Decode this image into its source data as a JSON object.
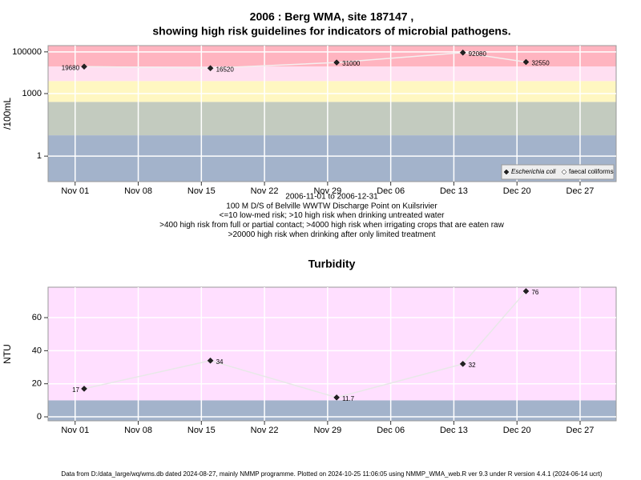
{
  "chart_data": [
    {
      "type": "line",
      "title": "2006 : Berg WMA, site 187147 ,",
      "subtitle": "showing high risk guidelines for indicators of microbial pathogens.",
      "y_label": "/100mL",
      "log_y": true,
      "x": [
        "2006-11-02",
        "2006-11-16",
        "2006-11-30",
        "2006-12-14",
        "2006-12-21"
      ],
      "series": [
        {
          "name": "Escherichia coli",
          "color": "#222222",
          "line_color": "#f4f0f0",
          "values": [
            19680,
            16520,
            31000,
            92080,
            32550
          ]
        },
        {
          "name": "faecal coliforms",
          "color": "#ffffff",
          "line_color": "#f4f0f0",
          "values": [
            null,
            null,
            null,
            null,
            null
          ]
        }
      ],
      "xlim": [
        "2006-10-29",
        "2006-12-31"
      ],
      "xticks": [
        {
          "value": "2006-11-01",
          "label": "Nov 01"
        },
        {
          "value": "2006-11-08",
          "label": "Nov 08"
        },
        {
          "value": "2006-11-15",
          "label": "Nov 15"
        },
        {
          "value": "2006-11-22",
          "label": "Nov 22"
        },
        {
          "value": "2006-11-29",
          "label": "Nov 29"
        },
        {
          "value": "2006-12-06",
          "label": "Dec 06"
        },
        {
          "value": "2006-12-13",
          "label": "Dec 13"
        },
        {
          "value": "2006-12-20",
          "label": "Dec 20"
        },
        {
          "value": "2006-12-27",
          "label": "Dec 27"
        }
      ],
      "ylim": [
        0.06,
        200000
      ],
      "yticks": [
        1,
        1000,
        100000
      ],
      "thresholds": [
        10,
        400,
        4000,
        20000
      ],
      "band_colors": [
        "#a3b3cb",
        "#c3cbbf",
        "#fff7c1",
        "#ffdff1",
        "#ffb4c0"
      ],
      "grid": true,
      "legend": "bottom-right",
      "notes": [
        "2006-11-01 to 2006-12-31",
        "100 M D/S of Belville WWTW Discharge Point on Kuilsrivier",
        "<=10 low-med risk; >10 high risk when drinking untreated water",
        ">400 high risk from full or partial contact; >4000 high risk when irrigating crops that are eaten raw",
        ">20000 high risk when drinking after only limited treatment"
      ]
    },
    {
      "type": "line",
      "title": "Turbidity",
      "y_label": "NTU",
      "log_y": false,
      "x": [
        "2006-11-02",
        "2006-11-16",
        "2006-11-30",
        "2006-12-14",
        "2006-12-21"
      ],
      "series": [
        {
          "name": "Turbidity",
          "color": "#222222",
          "line_color": "#e8e8e8",
          "values": [
            17,
            34,
            11.7,
            32,
            76
          ]
        }
      ],
      "xlim": [
        "2006-10-29",
        "2006-12-31"
      ],
      "xticks": [
        {
          "value": "2006-11-01",
          "label": "Nov 01"
        },
        {
          "value": "2006-11-08",
          "label": "Nov 08"
        },
        {
          "value": "2006-11-15",
          "label": "Nov 15"
        },
        {
          "value": "2006-11-22",
          "label": "Nov 22"
        },
        {
          "value": "2006-11-29",
          "label": "Nov 29"
        },
        {
          "value": "2006-12-06",
          "label": "Dec 06"
        },
        {
          "value": "2006-12-13",
          "label": "Dec 13"
        },
        {
          "value": "2006-12-20",
          "label": "Dec 20"
        },
        {
          "value": "2006-12-27",
          "label": "Dec 27"
        }
      ],
      "ylim": [
        -2.4,
        78.4
      ],
      "yticks": [
        0,
        20,
        40,
        60
      ],
      "thresholds": [
        10
      ],
      "band_colors": [
        "#a3b3cb",
        "#ffdfff"
      ],
      "grid": true
    }
  ],
  "footer": "Data from D:/data_large/wq/wms.db dated 2024-08-27, mainly NMMP programme. Plotted on 2024-10-25 11:06:05 using NMMP_WMA_web.R ver 9.3 under R version 4.4.1 (2024-06-14 ucrt)"
}
